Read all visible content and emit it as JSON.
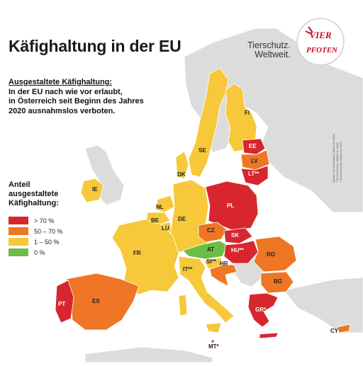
{
  "title": "Käfighaltung in der EU",
  "brand": {
    "line1": "Tierschutz.",
    "line2": "Weltweit.",
    "logo_text_top": "VIER",
    "logo_text_bottom": "PFOTEN"
  },
  "description": {
    "heading": "Ausgestaltete Käfighaltung:",
    "line1": "In der EU nach wie vor erlaubt,",
    "line2": "in Österreich seit Beginn des Jahres",
    "line3": "2020 ausnahmslos verboten."
  },
  "legend": {
    "title_line1": "Anteil",
    "title_line2": "ausgestaltete",
    "title_line3": "Käfighaltung:",
    "items": [
      {
        "label": "> 70 %",
        "color": "#d7262e"
      },
      {
        "label": "50 – 70 %",
        "color": "#ee7625"
      },
      {
        "label": "1 – 50 %",
        "color": "#f6c83a"
      },
      {
        "label": "0 %",
        "color": "#6cbd45"
      }
    ]
  },
  "credits": {
    "line1": "Quellen:  EU-Kommission (Zahlen für 2020)",
    "line2": "* EU-Kommission (Zahlen für 2018)",
    "line3": "** EU-Kommission (Zahlen für 2021)"
  },
  "colors": {
    "red": "#d7262e",
    "orange": "#ee7625",
    "yellow": "#f6c83a",
    "green": "#6cbd45",
    "grey": "#d9d9d9"
  },
  "countries": {
    "FI": "FI",
    "SE": "SE",
    "EE": "EE",
    "LV": "LV",
    "LT": "LT**",
    "DK": "DK",
    "IE": "IE",
    "NL": "NL",
    "BE": "BE",
    "LU": "LU",
    "DE": "DE",
    "PL": "PL",
    "CZ": "CZ",
    "SK": "SK",
    "AT": "AT",
    "HU": "HU**",
    "FR": "FR",
    "SI": "SI**",
    "HR": "HR",
    "RO": "RO",
    "BG": "BG",
    "IT": "IT**",
    "ES": "ES",
    "PT": "PT",
    "GR": "GR*",
    "CY": "CY",
    "MT": "MT*"
  }
}
